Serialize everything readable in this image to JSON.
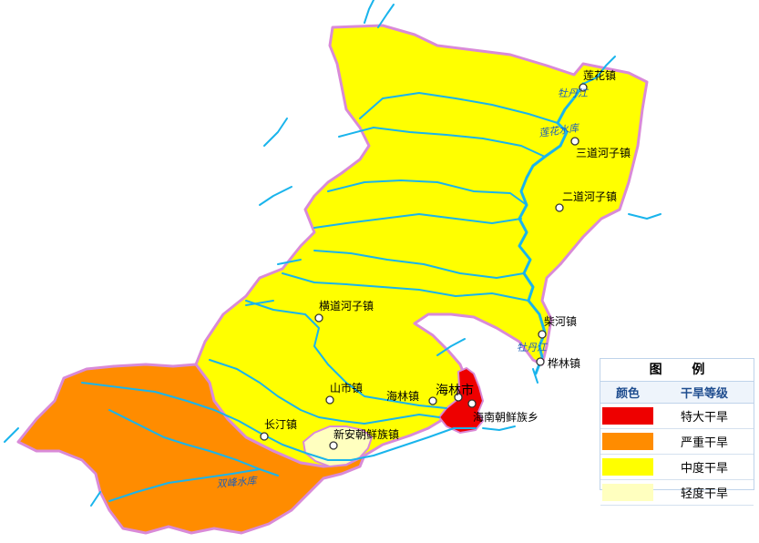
{
  "legend": {
    "title": "图 例",
    "col_color": "颜色",
    "col_level": "干旱等级",
    "items": [
      {
        "label": "特大干旱",
        "color": "#ee0000"
      },
      {
        "label": "严重干旱",
        "color": "#ff8c00"
      },
      {
        "label": "中度干旱",
        "color": "#ffff00"
      },
      {
        "label": "轻度干旱",
        "color": "#ffffbf"
      }
    ]
  },
  "places": {
    "lianhua": "莲花镇",
    "sandaohezi": "三道河子镇",
    "erdaohezi": "二道河子镇",
    "chaihe": "柴河镇",
    "hualin": "桦林镇",
    "hengdaohezi": "横道河子镇",
    "shanshi": "山市镇",
    "hailin_town": "海林镇",
    "hailin_city": "海林市",
    "hainan": "海南朝鲜族乡",
    "changting": "长汀镇",
    "xinan": "新安朝鲜族镇"
  },
  "rivers": {
    "mudanjiang_north": "牡丹江",
    "lianhua_reservoir": "莲花水库",
    "mudanjiang_south": "牡丹江",
    "shuangfeng_reservoir": "双峰水库"
  },
  "colors": {
    "severe_extreme": "#ee0000",
    "severe": "#ff8c00",
    "moderate": "#ffff00",
    "light": "#ffffbf",
    "border": "#d98ad8",
    "river": "#19b4ec"
  }
}
